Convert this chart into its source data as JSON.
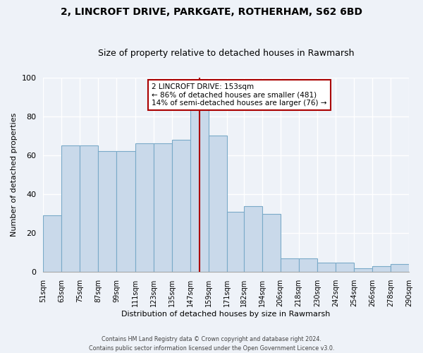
{
  "title1": "2, LINCROFT DRIVE, PARKGATE, ROTHERHAM, S62 6BD",
  "title2": "Size of property relative to detached houses in Rawmarsh",
  "xlabel": "Distribution of detached houses by size in Rawmarsh",
  "ylabel": "Number of detached properties",
  "bin_labels": [
    "51sqm",
    "63sqm",
    "75sqm",
    "87sqm",
    "99sqm",
    "111sqm",
    "123sqm",
    "135sqm",
    "147sqm",
    "159sqm",
    "171sqm",
    "182sqm",
    "194sqm",
    "206sqm",
    "218sqm",
    "230sqm",
    "242sqm",
    "254sqm",
    "266sqm",
    "278sqm",
    "290sqm"
  ],
  "bin_edges": [
    51,
    63,
    75,
    87,
    99,
    111,
    123,
    135,
    147,
    159,
    171,
    182,
    194,
    206,
    218,
    230,
    242,
    254,
    266,
    278,
    290
  ],
  "bar_heights": [
    29,
    65,
    65,
    62,
    62,
    66,
    66,
    68,
    84,
    70,
    31,
    34,
    30,
    7,
    7,
    5,
    5,
    2,
    3,
    4
  ],
  "property_size": 153,
  "bar_color": "#c9d9ea",
  "bar_edge_color": "#7aaac8",
  "vline_color": "#aa0000",
  "annotation_text_line1": "2 LINCROFT DRIVE: 153sqm",
  "annotation_text_line2": "← 86% of detached houses are smaller (481)",
  "annotation_text_line3": "14% of semi-detached houses are larger (76) →",
  "ylim": [
    0,
    100
  ],
  "yticks": [
    0,
    20,
    40,
    60,
    80,
    100
  ],
  "footer": "Contains HM Land Registry data © Crown copyright and database right 2024.\nContains public sector information licensed under the Open Government Licence v3.0.",
  "background_color": "#eef2f8",
  "grid_color": "#ffffff",
  "title1_fontsize": 10,
  "title2_fontsize": 9
}
